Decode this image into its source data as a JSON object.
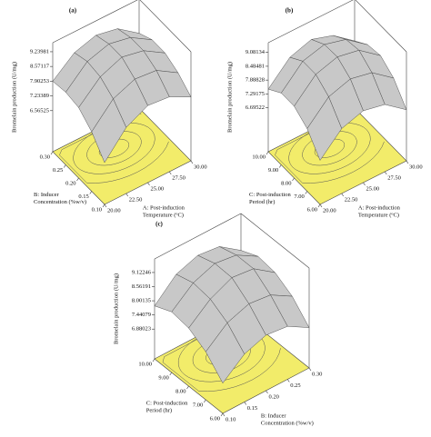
{
  "chart_data": [
    {
      "type": "surface",
      "title": "(a)",
      "z_label": "Bromelain production (U/mg)",
      "x_label": [
        "A: Post-induction",
        "Temperature (ºC)"
      ],
      "y_label": [
        "B: Inducer",
        "Concentration (%w/v)"
      ],
      "xlim": [
        20,
        30
      ],
      "xticks": [
        {
          "value": 20,
          "label": "20.00"
        },
        {
          "value": 22.5,
          "label": "22.50"
        },
        {
          "value": 25,
          "label": "25.00"
        },
        {
          "value": 27.5,
          "label": "27.50"
        },
        {
          "value": 30,
          "label": "30.00"
        }
      ],
      "ylim": [
        0.1,
        0.3
      ],
      "yticks": [
        {
          "value": 0.1,
          "label": "0.10"
        },
        0.15,
        {
          "value": 0.2,
          "label": "0.20"
        },
        0.25,
        {
          "value": 0.3,
          "label": "0.30"
        }
      ],
      "zlim": [
        4.7,
        9.65
      ],
      "zticks": [
        6.56525,
        7.23389,
        7.90253,
        8.57117,
        9.23981
      ],
      "x": [
        20,
        22.5,
        25,
        27.5,
        30
      ],
      "y": [
        0.1,
        0.15,
        0.2,
        0.25,
        0.3
      ],
      "z": [
        [
          6.6,
          7.7,
          8.2,
          8.1,
          7.6
        ],
        [
          7.4,
          8.4,
          8.8,
          8.7,
          8.1
        ],
        [
          7.9,
          8.8,
          9.2,
          9.0,
          8.4
        ],
        [
          8.0,
          8.9,
          9.2,
          9.0,
          8.4
        ],
        [
          7.9,
          8.7,
          9.0,
          8.8,
          8.1
        ]
      ],
      "surface_color": "#c8c8c8",
      "floor_color": "#f2ec6a"
    },
    {
      "type": "surface",
      "title": "(b)",
      "z_label": "Bromelain production (U/mg)",
      "x_label": [
        "A: Post-induction",
        "Temperature (ºC)"
      ],
      "y_label": [
        "C: Post-induction",
        "Period (hr)"
      ],
      "xlim": [
        20,
        30
      ],
      "xticks": [
        {
          "value": 20,
          "label": "20.00"
        },
        {
          "value": 22.5,
          "label": "22.50"
        },
        {
          "value": 25,
          "label": "25.00"
        },
        {
          "value": 27.5,
          "label": "27.50"
        },
        {
          "value": 30,
          "label": "30.00"
        }
      ],
      "ylim": [
        6,
        10
      ],
      "yticks": [
        {
          "value": 6,
          "label": "6.00"
        },
        {
          "value": 7,
          "label": "7.00"
        },
        {
          "value": 8,
          "label": "8.00"
        },
        {
          "value": 9,
          "label": "9.00"
        },
        {
          "value": 10,
          "label": "10.00"
        }
      ],
      "zlim": [
        4.8,
        9.5
      ],
      "zticks": [
        6.69522,
        7.29175,
        7.88828,
        8.48481,
        9.08134
      ],
      "x": [
        20,
        22.5,
        25,
        27.5,
        30
      ],
      "y": [
        6,
        7,
        8,
        9,
        10
      ],
      "z": [
        [
          6.7,
          7.6,
          7.9,
          7.7,
          7.0
        ],
        [
          7.5,
          8.4,
          8.7,
          8.5,
          7.8
        ],
        [
          7.9,
          8.8,
          9.08,
          8.9,
          8.2
        ],
        [
          7.9,
          8.8,
          9.05,
          8.8,
          8.1
        ],
        [
          7.5,
          8.4,
          8.7,
          8.4,
          7.7
        ]
      ],
      "surface_color": "#c8c8c8",
      "floor_color": "#f2ec6a"
    },
    {
      "type": "surface",
      "title": "(c)",
      "z_label": "Bromelain production (U/mg)",
      "x_label": [
        "B: Inducer",
        "Concentration (%w/v)"
      ],
      "y_label": [
        "C: Post-induction",
        "Period (hr)"
      ],
      "xlim": [
        0.1,
        0.3
      ],
      "xticks": [
        {
          "value": 0.1,
          "label": "0.10"
        },
        0.15,
        {
          "value": 0.2,
          "label": "0.20"
        },
        0.25,
        {
          "value": 0.3,
          "label": "0.30"
        }
      ],
      "ylim": [
        6,
        10
      ],
      "yticks": [
        {
          "value": 6,
          "label": "6.00"
        },
        {
          "value": 7,
          "label": "7.00"
        },
        {
          "value": 8,
          "label": "8.00"
        },
        {
          "value": 9,
          "label": "9.00"
        },
        {
          "value": 10,
          "label": "10.00"
        }
      ],
      "zlim": [
        5.7,
        9.66
      ],
      "zticks": [
        6.88023,
        7.44079,
        8.00135,
        8.56191,
        9.12246
      ],
      "x": [
        0.1,
        0.15,
        0.2,
        0.25,
        0.3
      ],
      "y": [
        6,
        7,
        8,
        9,
        10
      ],
      "z": [
        [
          6.9,
          7.6,
          7.9,
          7.8,
          7.3
        ],
        [
          7.6,
          8.3,
          8.6,
          8.5,
          8.0
        ],
        [
          8.0,
          8.7,
          9.1,
          9.0,
          8.4
        ],
        [
          8.1,
          8.8,
          9.12,
          9.0,
          8.5
        ],
        [
          7.8,
          8.6,
          8.9,
          8.8,
          8.2
        ]
      ],
      "surface_color": "#c8c8c8",
      "floor_color": "#f2ec6a"
    }
  ]
}
